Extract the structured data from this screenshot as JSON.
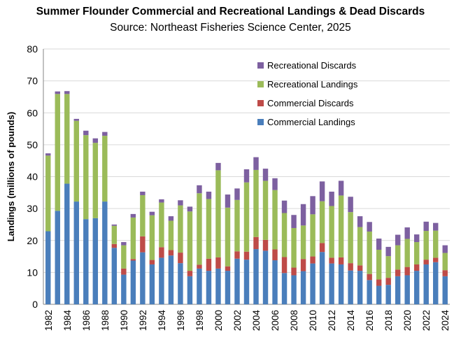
{
  "chart_data": {
    "type": "bar",
    "stacked": true,
    "title": "Summer Flounder Commercial and Recreational Landings & Dead Discards",
    "subtitle": "Source: Northeast Fisheries Science Center, 2025",
    "xlabel": "",
    "ylabel": "Landings (millions of pounds)",
    "ylim": [
      0,
      80
    ],
    "yticks": [
      0,
      10,
      20,
      30,
      40,
      50,
      60,
      70,
      80
    ],
    "grid": true,
    "legend_position": "top-right",
    "categories": [
      "1982",
      "1983",
      "1984",
      "1985",
      "1986",
      "1987",
      "1988",
      "1989",
      "1990",
      "1991",
      "1992",
      "1993",
      "1994",
      "1995",
      "1996",
      "1997",
      "1998",
      "1999",
      "2000",
      "2001",
      "2002",
      "2003",
      "2004",
      "2005",
      "2006",
      "2007",
      "2008",
      "2009",
      "2010",
      "2011",
      "2012",
      "2013",
      "2014",
      "2015",
      "2016",
      "2017",
      "2018",
      "2019",
      "2020",
      "2021",
      "2022",
      "2023",
      "2024"
    ],
    "xtick_labels": [
      "1982",
      "1984",
      "1986",
      "1988",
      "1990",
      "1992",
      "1994",
      "1996",
      "1998",
      "2000",
      "2002",
      "2004",
      "2006",
      "2008",
      "2010",
      "2012",
      "2014",
      "2016",
      "2018",
      "2020",
      "2022",
      "2024"
    ],
    "series": [
      {
        "name": "Commercial Landings",
        "color": "#4a7ebb",
        "values": [
          22.9,
          29.3,
          37.8,
          32.2,
          26.7,
          27.0,
          32.2,
          17.7,
          9.3,
          13.7,
          16.3,
          12.5,
          14.6,
          15.3,
          12.9,
          8.8,
          11.2,
          10.5,
          11.2,
          10.5,
          14.3,
          14.0,
          17.3,
          16.8,
          13.8,
          9.8,
          9.1,
          10.4,
          12.8,
          16.4,
          12.8,
          12.5,
          10.6,
          10.5,
          7.6,
          5.8,
          6.1,
          8.8,
          9.1,
          10.5,
          12.5,
          13.2,
          8.8
        ]
      },
      {
        "name": "Commercial Discards",
        "color": "#be4b48",
        "values": [
          0,
          0,
          0,
          0,
          0,
          0,
          0,
          1.2,
          1.9,
          0.5,
          5.0,
          1.4,
          3.3,
          1.7,
          3.3,
          1.7,
          1.2,
          3.8,
          3.5,
          1.4,
          2.3,
          2.5,
          3.8,
          3.4,
          3.4,
          5.0,
          2.4,
          3.8,
          2.2,
          2.8,
          1.8,
          2.2,
          2.3,
          1.7,
          1.9,
          2.0,
          2.2,
          2.1,
          2.6,
          2.0,
          1.5,
          1.4,
          1.9
        ]
      },
      {
        "name": "Recreational Landings",
        "color": "#9bbb59",
        "values": [
          23.7,
          36.6,
          28.1,
          25.3,
          26.3,
          23.6,
          20.6,
          5.7,
          7.3,
          13.0,
          12.9,
          14.0,
          14.0,
          9.2,
          14.8,
          18.6,
          22.4,
          18.7,
          27.3,
          18.4,
          16.1,
          21.7,
          21.0,
          18.5,
          18.6,
          13.8,
          12.4,
          10.5,
          13.2,
          13.1,
          16.2,
          19.4,
          16.0,
          12.0,
          13.3,
          9.3,
          6.8,
          7.6,
          8.8,
          7.0,
          9.0,
          8.5,
          5.4
        ]
      },
      {
        "name": "Recreational Discards",
        "color": "#7d60a0",
        "values": [
          0.7,
          0.8,
          0.9,
          0.6,
          1.4,
          1.4,
          1.2,
          0.4,
          1.0,
          1.1,
          1.1,
          1.1,
          1.0,
          1.4,
          1.6,
          1.5,
          2.5,
          2.3,
          2.3,
          4.1,
          3.6,
          4.1,
          4.0,
          3.8,
          3.7,
          3.9,
          4.1,
          6.7,
          5.7,
          6.2,
          4.5,
          4.6,
          4.8,
          3.4,
          3.0,
          3.5,
          2.9,
          3.3,
          3.6,
          2.4,
          2.9,
          2.4,
          2.4
        ]
      }
    ],
    "legend_order": [
      "Recreational Discards",
      "Recreational Landings",
      "Commercial Discards",
      "Commercial Landings"
    ]
  }
}
